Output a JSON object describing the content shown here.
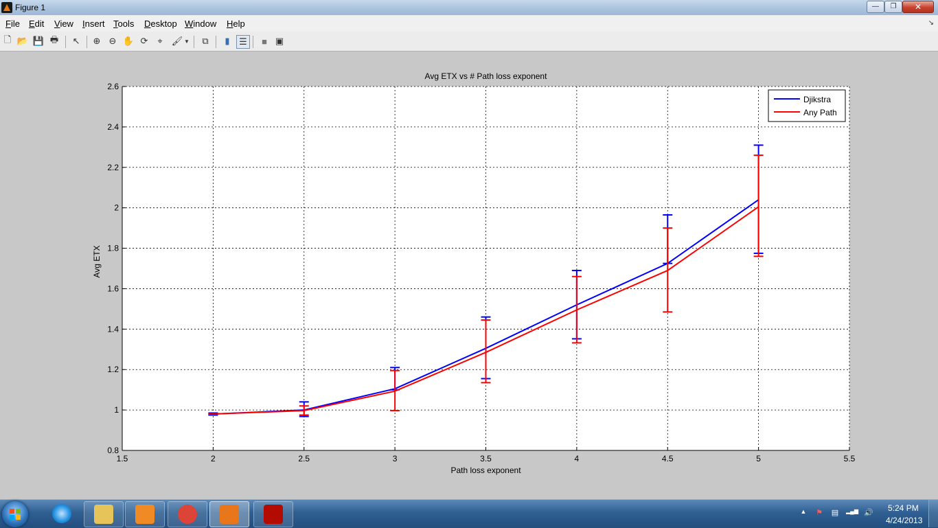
{
  "window": {
    "title": "Figure 1",
    "minimize_glyph": "—",
    "restore_glyph": "❐",
    "close_glyph": "✕"
  },
  "menu": {
    "items": [
      {
        "key": "F",
        "rest": "ile"
      },
      {
        "key": "E",
        "rest": "dit"
      },
      {
        "key": "V",
        "rest": "iew"
      },
      {
        "key": "I",
        "rest": "nsert"
      },
      {
        "key": "T",
        "rest": "ools"
      },
      {
        "key": "D",
        "rest": "esktop"
      },
      {
        "key": "W",
        "rest": "indow"
      },
      {
        "key": "H",
        "rest": "elp"
      }
    ],
    "overflow_glyph": "↘"
  },
  "toolbar": {
    "buttons": [
      {
        "name": "new-figure-icon",
        "glyph": "🗋"
      },
      {
        "name": "open-file-icon",
        "glyph": "📂"
      },
      {
        "name": "save-figure-icon",
        "glyph": "💾"
      },
      {
        "name": "print-figure-icon",
        "glyph": "🖶"
      },
      {
        "name": "edit-plot-icon",
        "glyph": "↖"
      },
      {
        "name": "zoom-in-icon",
        "glyph": "⊕"
      },
      {
        "name": "zoom-out-icon",
        "glyph": "⊖"
      },
      {
        "name": "pan-icon",
        "glyph": "✋"
      },
      {
        "name": "rotate-3d-icon",
        "glyph": "⟳"
      },
      {
        "name": "data-cursor-icon",
        "glyph": "⌖"
      },
      {
        "name": "brush-icon",
        "glyph": "🖌"
      },
      {
        "name": "link-plot-icon",
        "glyph": "⧉"
      },
      {
        "name": "insert-colorbar-icon",
        "glyph": "▮"
      },
      {
        "name": "insert-legend-icon",
        "glyph": "☰"
      },
      {
        "name": "hide-plot-tools-icon",
        "glyph": "■"
      },
      {
        "name": "show-plot-tools-icon",
        "glyph": "▣"
      }
    ]
  },
  "chart_data": {
    "type": "line",
    "title": "Avg ETX vs # Path loss exponent",
    "xlabel": "Path loss exponent",
    "ylabel": "Avg ETX",
    "xlim": [
      1.5,
      5.5
    ],
    "ylim": [
      0.8,
      2.6
    ],
    "xticks": [
      "1.5",
      "2",
      "2.5",
      "3",
      "3.5",
      "4",
      "4.5",
      "5",
      "5.5"
    ],
    "yticks": [
      "0.8",
      "1",
      "1.2",
      "1.4",
      "1.6",
      "1.8",
      "2",
      "2.2",
      "2.4",
      "2.6"
    ],
    "grid": true,
    "legend_position": "top-right",
    "x": [
      2,
      2.5,
      3,
      3.5,
      4,
      4.5,
      5
    ],
    "series": [
      {
        "name": "Djikstra",
        "color": "#0000ff",
        "values": [
          0.98,
          1.0,
          1.105,
          1.305,
          1.52,
          1.725,
          2.04
        ],
        "err_low": [
          0.975,
          0.968,
          1.1,
          1.155,
          1.352,
          1.725,
          1.775
        ],
        "err_high": [
          0.985,
          1.04,
          1.21,
          1.46,
          1.69,
          1.965,
          2.31
        ]
      },
      {
        "name": "Any Path",
        "color": "#ff0000",
        "values": [
          0.98,
          0.997,
          1.093,
          1.285,
          1.495,
          1.69,
          2.005
        ],
        "err_low": [
          0.98,
          0.975,
          0.997,
          1.135,
          1.332,
          1.485,
          1.76
        ],
        "err_high": [
          0.98,
          1.02,
          1.195,
          1.445,
          1.66,
          1.9,
          2.26
        ]
      }
    ]
  },
  "taskbar": {
    "apps": [
      {
        "name": "taskbar-internet-explorer-icon",
        "color": "#1f8fe0",
        "pinned": false
      },
      {
        "name": "taskbar-file-explorer-icon",
        "color": "#e7c45a",
        "pinned": true
      },
      {
        "name": "taskbar-media-player-icon",
        "color": "#f08a24",
        "pinned": true
      },
      {
        "name": "taskbar-chrome-icon",
        "color": "#db4437",
        "pinned": true
      },
      {
        "name": "taskbar-matlab-icon",
        "color": "#e8761b",
        "pinned": true
      },
      {
        "name": "taskbar-acrobat-icon",
        "color": "#b30b00",
        "pinned": true
      }
    ],
    "tray": {
      "expand_glyph": "▲",
      "flag_glyph": "⚑",
      "device_glyph": "▤",
      "network_glyph": "▂▄▆",
      "volume_glyph": "🔊"
    },
    "time": "5:24 PM",
    "date": "4/24/2013"
  }
}
